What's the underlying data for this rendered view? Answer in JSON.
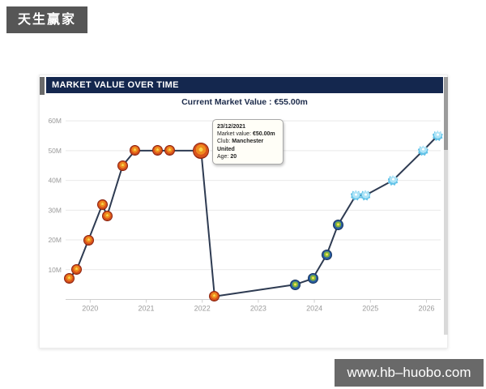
{
  "watermarks": {
    "top_left": "天生赢家",
    "bottom_right": "www.hb–huobo.com"
  },
  "card": {
    "title": "MARKET VALUE OVER TIME",
    "subtitle": "Current Market Value : €55.00m"
  },
  "colors": {
    "header_bg": "#14274e",
    "subtitle_text": "#1b2a4a",
    "line": "#2e3b52",
    "gridline": "#e9e9e9",
    "axis": "#cfcfcf",
    "axis_label": "#9a9a9a",
    "watermark_bg_top": "#565656",
    "watermark_bg_bottom": "#696969",
    "badge_manutd": "#d8531c",
    "badge_getafe": "#2a5ea0",
    "badge_marseille": "#63c3e8"
  },
  "chart_data": {
    "type": "line",
    "title": "MARKET VALUE OVER TIME",
    "subtitle": "Current Market Value : €55.00m",
    "series_name": "Market value",
    "unit": "€ million",
    "grid": "horizontal-only",
    "x_axis": {
      "min": 2019.56,
      "max": 2026.25,
      "ticks": [
        {
          "value": 2020,
          "label": "2020"
        },
        {
          "value": 2021,
          "label": "2021"
        },
        {
          "value": 2022,
          "label": "2022"
        },
        {
          "value": 2023,
          "label": "2023"
        },
        {
          "value": 2024,
          "label": "2024"
        },
        {
          "value": 2025,
          "label": "2025"
        },
        {
          "value": 2026,
          "label": "2026"
        }
      ]
    },
    "y_axis": {
      "min": 0,
      "max": 63,
      "ticks": [
        {
          "value": 10,
          "label": "10M"
        },
        {
          "value": 20,
          "label": "20M"
        },
        {
          "value": 30,
          "label": "30M"
        },
        {
          "value": 40,
          "label": "40M"
        },
        {
          "value": 50,
          "label": "50M"
        },
        {
          "value": 60,
          "label": "60M"
        }
      ]
    },
    "points": [
      {
        "x": 2019.62,
        "y": 7,
        "club": "manutd"
      },
      {
        "x": 2019.76,
        "y": 10,
        "club": "manutd"
      },
      {
        "x": 2019.97,
        "y": 20,
        "club": "manutd"
      },
      {
        "x": 2020.22,
        "y": 32,
        "club": "manutd"
      },
      {
        "x": 2020.3,
        "y": 28,
        "club": "manutd"
      },
      {
        "x": 2020.58,
        "y": 45,
        "club": "manutd"
      },
      {
        "x": 2020.8,
        "y": 50,
        "club": "manutd"
      },
      {
        "x": 2021.2,
        "y": 50,
        "club": "manutd"
      },
      {
        "x": 2021.42,
        "y": 50,
        "club": "manutd"
      },
      {
        "x": 2021.98,
        "y": 50,
        "club": "manutd",
        "highlighted": true
      },
      {
        "x": 2022.22,
        "y": 1,
        "club": "manutd"
      },
      {
        "x": 2023.66,
        "y": 5,
        "club": "getafe"
      },
      {
        "x": 2023.97,
        "y": 7,
        "club": "getafe"
      },
      {
        "x": 2024.22,
        "y": 15,
        "club": "getafe"
      },
      {
        "x": 2024.42,
        "y": 25,
        "club": "getafe"
      },
      {
        "x": 2024.74,
        "y": 35,
        "club": "marseille"
      },
      {
        "x": 2024.91,
        "y": 35,
        "club": "marseille"
      },
      {
        "x": 2025.4,
        "y": 40,
        "club": "marseille"
      },
      {
        "x": 2025.94,
        "y": 50,
        "club": "marseille"
      },
      {
        "x": 2026.2,
        "y": 55,
        "club": "marseille"
      }
    ],
    "tooltip": {
      "date": "23/12/2021",
      "rows": [
        {
          "label": "Market value: ",
          "value": "€50.00m"
        },
        {
          "label": "Club: ",
          "value": "Manchester United"
        },
        {
          "label": "Age: ",
          "value": "20"
        }
      ]
    }
  }
}
